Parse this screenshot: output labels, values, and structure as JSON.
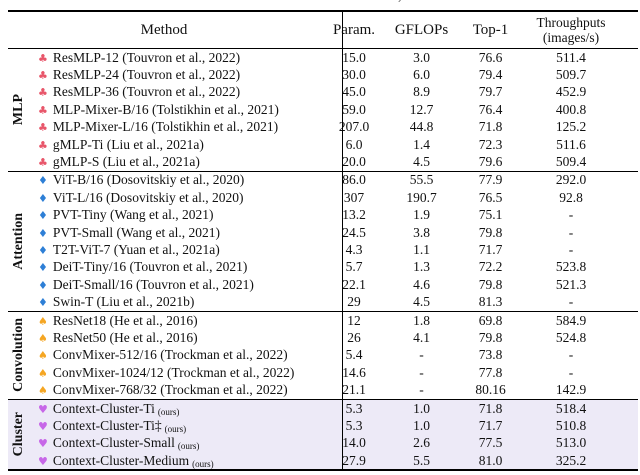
{
  "caption_fragment": ", p",
  "header": {
    "method": "Method",
    "param": "Param.",
    "gflops": "GFLOPs",
    "top1": "Top-1",
    "throughput_line1": "Throughputs",
    "throughput_line2": "(images/s)"
  },
  "colors": {
    "club": "#e8566a",
    "diamond": "#2e7fd6",
    "spade": "#f5a623",
    "heart": "#c767e8",
    "highlight_bg": "#edeaf7"
  },
  "groups": [
    {
      "label": "MLP",
      "suit": "club",
      "suit_glyph": "♣",
      "suit_color": "#e8566a",
      "highlight": false,
      "rows": [
        {
          "method": "ResMLP-12 (Touvron et al., 2022)",
          "param": "15.0",
          "gflops": "3.0",
          "top1": "76.6",
          "throughput": "511.4"
        },
        {
          "method": "ResMLP-24 (Touvron et al., 2022)",
          "param": "30.0",
          "gflops": "6.0",
          "top1": "79.4",
          "throughput": "509.7"
        },
        {
          "method": "ResMLP-36 (Touvron et al., 2022)",
          "param": "45.0",
          "gflops": "8.9",
          "top1": "79.7",
          "throughput": "452.9"
        },
        {
          "method": "MLP-Mixer-B/16 (Tolstikhin et al., 2021)",
          "param": "59.0",
          "gflops": "12.7",
          "top1": "76.4",
          "throughput": "400.8"
        },
        {
          "method": "MLP-Mixer-L/16 (Tolstikhin et al., 2021)",
          "param": "207.0",
          "gflops": "44.8",
          "top1": "71.8",
          "throughput": "125.2"
        },
        {
          "method": "gMLP-Ti (Liu et al., 2021a)",
          "param": "6.0",
          "gflops": "1.4",
          "top1": "72.3",
          "throughput": "511.6"
        },
        {
          "method": "gMLP-S (Liu et al., 2021a)",
          "param": "20.0",
          "gflops": "4.5",
          "top1": "79.6",
          "throughput": "509.4"
        }
      ]
    },
    {
      "label": "Attention",
      "suit": "diamond",
      "suit_glyph": "♦",
      "suit_color": "#2e7fd6",
      "highlight": false,
      "rows": [
        {
          "method": "ViT-B/16 (Dosovitskiy et al., 2020)",
          "param": "86.0",
          "gflops": "55.5",
          "top1": "77.9",
          "throughput": "292.0"
        },
        {
          "method": "ViT-L/16 (Dosovitskiy et al., 2020)",
          "param": "307",
          "gflops": "190.7",
          "top1": "76.5",
          "throughput": "92.8"
        },
        {
          "method": "PVT-Tiny (Wang et al., 2021)",
          "param": "13.2",
          "gflops": "1.9",
          "top1": "75.1",
          "throughput": "-"
        },
        {
          "method": "PVT-Small (Wang et al., 2021)",
          "param": "24.5",
          "gflops": "3.8",
          "top1": "79.8",
          "throughput": "-"
        },
        {
          "method": "T2T-ViT-7  (Yuan et al., 2021a)",
          "param": "4.3",
          "gflops": "1.1",
          "top1": "71.7",
          "throughput": "-"
        },
        {
          "method": "DeiT-Tiny/16 (Touvron et al., 2021)",
          "param": "5.7",
          "gflops": "1.3",
          "top1": "72.2",
          "throughput": "523.8"
        },
        {
          "method": "DeiT-Small/16 (Touvron et al., 2021)",
          "param": "22.1",
          "gflops": "4.6",
          "top1": "79.8",
          "throughput": "521.3"
        },
        {
          "method": "Swin-T (Liu et al., 2021b)",
          "param": "29",
          "gflops": "4.5",
          "top1": "81.3",
          "throughput": "-"
        }
      ]
    },
    {
      "label": "Convolution",
      "suit": "spade",
      "suit_glyph": "♠",
      "suit_color": "#f5a623",
      "highlight": false,
      "rows": [
        {
          "method": "ResNet18 (He et al., 2016)",
          "param": "12",
          "gflops": "1.8",
          "top1": "69.8",
          "throughput": "584.9"
        },
        {
          "method": "ResNet50 (He et al., 2016)",
          "param": "26",
          "gflops": "4.1",
          "top1": "79.8",
          "throughput": "524.8"
        },
        {
          "method": "ConvMixer-512/16 (Trockman et al., 2022)",
          "param": "5.4",
          "gflops": "-",
          "top1": "73.8",
          "throughput": "-"
        },
        {
          "method": "ConvMixer-1024/12 (Trockman et al., 2022)",
          "param": "14.6",
          "gflops": "-",
          "top1": "77.8",
          "throughput": "-"
        },
        {
          "method": "ConvMixer-768/32 (Trockman et al., 2022)",
          "param": "21.1",
          "gflops": "-",
          "top1": "80.16",
          "throughput": "142.9"
        }
      ]
    },
    {
      "label": "Cluster",
      "suit": "heart",
      "suit_glyph": "♥",
      "suit_color": "#c767e8",
      "highlight": true,
      "rows": [
        {
          "method": "Context-Cluster-Ti",
          "ours": "(ours)",
          "param": "5.3",
          "gflops": "1.0",
          "top1": "71.8",
          "throughput": "518.4"
        },
        {
          "method": "Context-Cluster-Ti‡",
          "ours": "(ours)",
          "param": "5.3",
          "gflops": "1.0",
          "top1": "71.7",
          "throughput": "510.8"
        },
        {
          "method": "Context-Cluster-Small",
          "ours": "(ours)",
          "param": "14.0",
          "gflops": "2.6",
          "top1": "77.5",
          "throughput": "513.0"
        },
        {
          "method": "Context-Cluster-Medium",
          "ours": "(ours)",
          "param": "27.9",
          "gflops": "5.5",
          "top1": "81.0",
          "throughput": "325.2"
        }
      ]
    }
  ]
}
